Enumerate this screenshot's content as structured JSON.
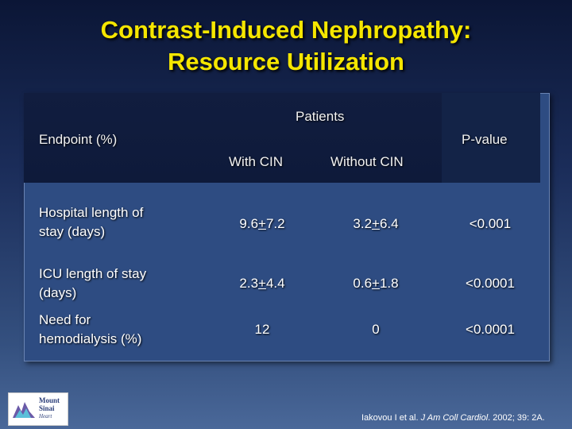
{
  "title": {
    "line1": "Contrast-Induced Nephropathy:",
    "line2": "Resource Utilization"
  },
  "table": {
    "header": {
      "patients": "Patients",
      "endpoint": "Endpoint (%)",
      "pvalue": "P-value",
      "with_cin": "With CIN",
      "without_cin": "Without CIN"
    },
    "rows": [
      {
        "endpoint_line1": "Hospital length of",
        "endpoint_line2": "stay (days)",
        "with_mean": "9.6",
        "with_pm": "+",
        "with_sd": "7.2",
        "without_mean": "3.2",
        "without_pm": "+",
        "without_sd": "6.4",
        "pvalue": "<0.001"
      },
      {
        "endpoint_line1": "ICU length of stay",
        "endpoint_line2": "(days)",
        "with_mean": "2.3",
        "with_pm": "+",
        "with_sd": "4.4",
        "without_mean": "0.6",
        "without_pm": "+",
        "without_sd": "1.8",
        "pvalue": "<0.0001"
      },
      {
        "endpoint_line1": "Need for",
        "endpoint_line2": "hemodialysis (%)",
        "with_value": "12",
        "without_value": "0",
        "pvalue": "<0.0001"
      }
    ]
  },
  "logo": {
    "line1": "Mount",
    "line2": "Sinai",
    "line3": "Heart"
  },
  "citation": {
    "authors": "Iakovou I et al. ",
    "journal": "J Am Coll Cardiol",
    "details": ". 2002; 39: 2A."
  },
  "colors": {
    "title": "#f5e600",
    "background_top": "#0b1636",
    "background_bottom": "#4a6899",
    "table_body": "#2e4c82",
    "table_header": "#111d3f"
  }
}
